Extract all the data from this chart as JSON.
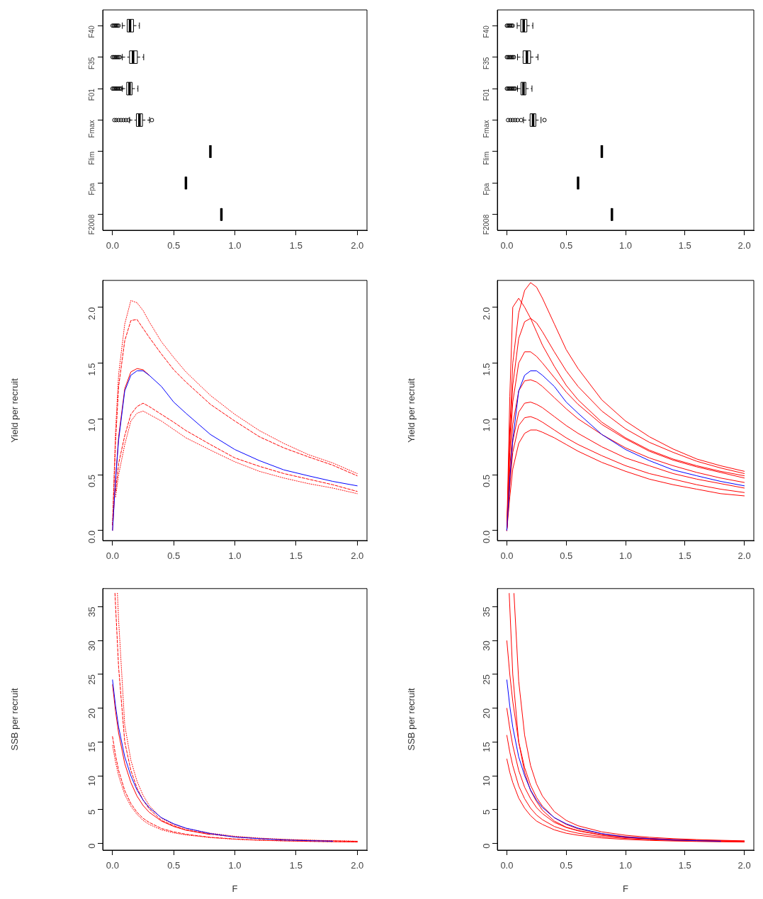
{
  "chart_data": [
    {
      "type": "box",
      "orientation": "horizontal",
      "categories": [
        "F40",
        "F35",
        "F01",
        "Fmax",
        "Flim",
        "Fpa",
        "F2008"
      ],
      "boxes": [
        {
          "low": 0.08,
          "q1": 0.12,
          "median": 0.143,
          "q3": 0.172,
          "high": 0.22,
          "outliers": [
            0.0,
            0.01,
            0.02,
            0.03,
            0.04,
            0.05
          ]
        },
        {
          "low": 0.08,
          "q1": 0.139,
          "median": 0.168,
          "q3": 0.203,
          "high": 0.255,
          "outliers": [
            0.0,
            0.01,
            0.02,
            0.03,
            0.04,
            0.05,
            0.06
          ]
        },
        {
          "low": 0.08,
          "q1": 0.116,
          "median": 0.139,
          "q3": 0.16,
          "high": 0.208,
          "outliers": [
            0.0,
            0.01,
            0.02,
            0.03,
            0.04,
            0.05,
            0.06,
            0.07
          ]
        },
        {
          "low": 0.139,
          "q1": 0.195,
          "median": 0.22,
          "q3": 0.245,
          "high": 0.303,
          "outliers": [
            0.015,
            0.03,
            0.05,
            0.07,
            0.09,
            0.11,
            0.13,
            0.322
          ]
        },
        {
          "low": 0.8,
          "q1": 0.8,
          "median": 0.8,
          "q3": 0.8,
          "high": 0.8
        },
        {
          "low": 0.6,
          "q1": 0.6,
          "median": 0.6,
          "q3": 0.6,
          "high": 0.6
        },
        {
          "low": 0.89,
          "q1": 0.89,
          "median": 0.89,
          "q3": 0.89,
          "high": 0.89
        }
      ],
      "xlim": [
        -0.08,
        2.08
      ],
      "xticks": [
        {
          "value": 0,
          "label": "0.0"
        },
        {
          "value": 0.5,
          "label": "0.5"
        },
        {
          "value": 1,
          "label": "1.0"
        },
        {
          "value": 1.5,
          "label": "1.5"
        },
        {
          "value": 2,
          "label": "2.0"
        }
      ],
      "grid": false,
      "legend": false
    },
    {
      "type": "box",
      "orientation": "horizontal",
      "categories": [
        "F40",
        "F35",
        "F01",
        "Fmax",
        "Flim",
        "Fpa",
        "F2008"
      ],
      "boxes": [
        {
          "low": 0.087,
          "q1": 0.117,
          "median": 0.142,
          "q3": 0.169,
          "high": 0.219,
          "outliers": [
            0.0,
            0.01,
            0.02,
            0.03,
            0.04,
            0.05
          ]
        },
        {
          "low": 0.09,
          "q1": 0.137,
          "median": 0.169,
          "q3": 0.2,
          "high": 0.262,
          "outliers": [
            0.0,
            0.01,
            0.02,
            0.03,
            0.04,
            0.05,
            0.06
          ]
        },
        {
          "low": 0.09,
          "q1": 0.119,
          "median": 0.14,
          "q3": 0.16,
          "high": 0.212,
          "outliers": [
            0.0,
            0.01,
            0.02,
            0.03,
            0.04,
            0.05,
            0.06,
            0.07
          ]
        },
        {
          "low": 0.14,
          "q1": 0.196,
          "median": 0.221,
          "q3": 0.244,
          "high": 0.288,
          "outliers": [
            0.01,
            0.03,
            0.05,
            0.07,
            0.09,
            0.12,
            0.317
          ]
        },
        {
          "low": 0.8,
          "q1": 0.8,
          "median": 0.8,
          "q3": 0.8,
          "high": 0.8
        },
        {
          "low": 0.6,
          "q1": 0.6,
          "median": 0.6,
          "q3": 0.6,
          "high": 0.6
        },
        {
          "low": 0.885,
          "q1": 0.885,
          "median": 0.885,
          "q3": 0.885,
          "high": 0.885
        }
      ],
      "xlim": [
        -0.08,
        2.08
      ],
      "xticks": [
        {
          "value": 0,
          "label": "0.0"
        },
        {
          "value": 0.5,
          "label": "0.5"
        },
        {
          "value": 1,
          "label": "1.0"
        },
        {
          "value": 1.5,
          "label": "1.5"
        },
        {
          "value": 2,
          "label": "2.0"
        }
      ],
      "grid": false,
      "legend": false
    },
    {
      "type": "line",
      "ylabel": "Yield per recruit",
      "marker": "none",
      "grid": false,
      "legend": false,
      "x": [
        0,
        0.025,
        0.05,
        0.1,
        0.15,
        0.2,
        0.25,
        0.3,
        0.4,
        0.5,
        0.6,
        0.8,
        1.0,
        1.2,
        1.4,
        1.6,
        1.8,
        2.0
      ],
      "series": [
        {
          "color": "#ff0000",
          "line_style": "dotted",
          "values": [
            0.05,
            0.9,
            1.4,
            1.85,
            2.06,
            2.04,
            1.97,
            1.87,
            1.69,
            1.55,
            1.42,
            1.21,
            1.04,
            0.895,
            0.78,
            0.68,
            0.605,
            0.51
          ]
        },
        {
          "color": "#ff0000",
          "line_style": "dashed",
          "values": [
            0.05,
            0.8,
            1.29,
            1.7,
            1.88,
            1.89,
            1.81,
            1.73,
            1.58,
            1.44,
            1.33,
            1.13,
            0.98,
            0.84,
            0.74,
            0.66,
            0.585,
            0.49
          ]
        },
        {
          "color": "#ff0000",
          "line_style": "dashed",
          "values": [
            null,
            0.35,
            0.6,
            0.85,
            1.04,
            1.11,
            1.14,
            1.11,
            1.04,
            0.97,
            0.895,
            0.77,
            0.65,
            0.575,
            0.51,
            0.46,
            0.41,
            0.35
          ]
        },
        {
          "color": "#ff0000",
          "line_style": "dotted",
          "values": [
            null,
            0.3,
            0.5,
            0.77,
            0.98,
            1.05,
            1.07,
            1.04,
            0.98,
            0.905,
            0.83,
            0.72,
            0.615,
            0.53,
            0.47,
            0.42,
            0.38,
            0.33
          ]
        },
        {
          "color": "#ff0000",
          "line_style": "solid",
          "values": [
            0,
            0.46,
            0.84,
            1.27,
            1.42,
            1.45,
            1.44,
            1.39,
            null,
            null,
            null,
            null,
            null,
            null,
            null,
            null,
            null,
            null
          ]
        },
        {
          "color": "#0000ff",
          "line_style": "solid",
          "values": [
            0,
            0.46,
            0.81,
            1.25,
            1.39,
            1.43,
            1.43,
            1.39,
            1.29,
            1.15,
            1.05,
            0.86,
            0.725,
            0.626,
            0.543,
            0.49,
            0.44,
            0.4
          ]
        }
      ],
      "xlim": [
        -0.08,
        2.08
      ],
      "xticks": [
        {
          "value": 0,
          "label": "0.0"
        },
        {
          "value": 0.5,
          "label": "0.5"
        },
        {
          "value": 1,
          "label": "1.0"
        },
        {
          "value": 1.5,
          "label": "1.5"
        },
        {
          "value": 2,
          "label": "2.0"
        }
      ],
      "ylim": [
        -0.09,
        2.24
      ],
      "yticks": [
        {
          "value": 0,
          "label": "0.0"
        },
        {
          "value": 0.5,
          "label": "0.5"
        },
        {
          "value": 1,
          "label": "1.0"
        },
        {
          "value": 1.5,
          "label": "1.5"
        },
        {
          "value": 2,
          "label": "2.0"
        }
      ]
    },
    {
      "type": "line",
      "ylabel": "Yield per recruit",
      "marker": "none",
      "grid": false,
      "legend": false,
      "x": [
        0,
        0.025,
        0.05,
        0.1,
        0.15,
        0.2,
        0.25,
        0.3,
        0.4,
        0.5,
        0.6,
        0.8,
        1.0,
        1.2,
        1.4,
        1.6,
        1.8,
        2.0
      ],
      "series": [
        {
          "color": "#ff0000",
          "line_style": "solid",
          "values": [
            0,
            0.9,
            1.5,
            1.95,
            2.15,
            2.22,
            2.18,
            2.08,
            1.85,
            1.62,
            1.45,
            1.17,
            0.98,
            0.84,
            0.73,
            0.64,
            0.58,
            0.53
          ]
        },
        {
          "color": "#ff0000",
          "line_style": "solid",
          "values": [
            0,
            1.2,
            2.0,
            2.08,
            2.0,
            1.9,
            1.78,
            1.66,
            1.47,
            1.3,
            1.17,
            0.97,
            0.83,
            0.72,
            0.64,
            0.58,
            0.53,
            0.49
          ]
        },
        {
          "color": "#ff0000",
          "line_style": "solid",
          "values": [
            0,
            0.8,
            1.3,
            1.72,
            1.87,
            1.9,
            1.86,
            1.78,
            1.6,
            1.43,
            1.29,
            1.07,
            0.91,
            0.79,
            0.7,
            0.62,
            0.56,
            0.51
          ]
        },
        {
          "color": "#ff0000",
          "line_style": "solid",
          "values": [
            0,
            0.7,
            1.15,
            1.5,
            1.6,
            1.6,
            1.56,
            1.5,
            1.37,
            1.24,
            1.13,
            0.95,
            0.82,
            0.71,
            0.63,
            0.57,
            0.52,
            0.47
          ]
        },
        {
          "color": "#ff0000",
          "line_style": "solid",
          "values": [
            0,
            0.55,
            0.95,
            1.25,
            1.34,
            1.35,
            1.33,
            1.29,
            1.19,
            1.09,
            1.0,
            0.86,
            0.74,
            0.65,
            0.58,
            0.52,
            0.47,
            0.43
          ]
        },
        {
          "color": "#ff0000",
          "line_style": "solid",
          "values": [
            0,
            0.45,
            0.8,
            1.06,
            1.14,
            1.15,
            1.13,
            1.1,
            1.02,
            0.94,
            0.87,
            0.75,
            0.65,
            0.58,
            0.51,
            0.46,
            0.42,
            0.38
          ]
        },
        {
          "color": "#ff0000",
          "line_style": "solid",
          "values": [
            0,
            0.4,
            0.7,
            0.94,
            1.01,
            1.02,
            1.0,
            0.97,
            0.9,
            0.83,
            0.77,
            0.67,
            0.58,
            0.51,
            0.46,
            0.41,
            0.37,
            0.34
          ]
        },
        {
          "color": "#ff0000",
          "line_style": "solid",
          "values": [
            0,
            0.3,
            0.55,
            0.78,
            0.87,
            0.9,
            0.9,
            0.88,
            0.83,
            0.77,
            0.71,
            0.61,
            0.53,
            0.46,
            0.41,
            0.37,
            0.33,
            0.31
          ]
        },
        {
          "color": "#0000ff",
          "line_style": "solid",
          "values": [
            0,
            0.46,
            0.81,
            1.25,
            1.39,
            1.43,
            1.43,
            1.39,
            1.29,
            1.15,
            1.05,
            0.86,
            0.725,
            0.626,
            0.543,
            0.49,
            0.44,
            0.4
          ]
        }
      ],
      "xlim": [
        -0.08,
        2.08
      ],
      "xticks": [
        {
          "value": 0,
          "label": "0.0"
        },
        {
          "value": 0.5,
          "label": "0.5"
        },
        {
          "value": 1,
          "label": "1.0"
        },
        {
          "value": 1.5,
          "label": "1.5"
        },
        {
          "value": 2,
          "label": "2.0"
        }
      ],
      "ylim": [
        -0.09,
        2.24
      ],
      "yticks": [
        {
          "value": 0,
          "label": "0.0"
        },
        {
          "value": 0.5,
          "label": "0.5"
        },
        {
          "value": 1,
          "label": "1.0"
        },
        {
          "value": 1.5,
          "label": "1.5"
        },
        {
          "value": 2,
          "label": "2.0"
        }
      ]
    },
    {
      "type": "line",
      "xlabel": "F",
      "ylabel": "SSB per recruit",
      "marker": "none",
      "grid": false,
      "legend": false,
      "x": [
        0,
        0.025,
        0.05,
        0.1,
        0.15,
        0.2,
        0.25,
        0.3,
        0.4,
        0.5,
        0.6,
        0.8,
        1.0,
        1.2,
        1.4,
        1.6,
        1.8,
        2.0
      ],
      "series": [
        {
          "color": "#ff0000",
          "line_style": "dotted",
          "x": [
            0.04,
            0.05,
            0.1,
            0.15,
            0.2,
            0.25,
            0.3,
            0.4,
            0.5,
            0.6,
            0.8,
            1.0,
            1.2,
            1.4,
            1.6,
            1.8,
            2.0
          ],
          "values": [
            37,
            33,
            17.5,
            12.3,
            9.2,
            7.1,
            5.6,
            3.7,
            2.8,
            2.2,
            1.5,
            1.05,
            0.78,
            0.6,
            0.48,
            0.4,
            0.32
          ]
        },
        {
          "color": "#ff0000",
          "line_style": "dashed",
          "x": [
            0.02,
            0.05,
            0.1,
            0.15,
            0.2,
            0.25,
            0.3,
            0.4,
            0.5,
            0.6,
            0.8,
            1.0,
            1.2,
            1.4,
            1.6,
            1.8,
            2.0
          ],
          "values": [
            37,
            26,
            15,
            10.8,
            8.2,
            6.4,
            5.1,
            3.4,
            2.6,
            2.0,
            1.35,
            0.95,
            0.7,
            0.55,
            0.45,
            0.37,
            0.3
          ]
        },
        {
          "color": "#ff0000",
          "line_style": "dashed",
          "values": [
            15.8,
            13,
            10.8,
            7.8,
            5.9,
            4.6,
            3.7,
            3.1,
            2.2,
            1.7,
            1.35,
            0.9,
            0.65,
            0.48,
            0.38,
            0.3,
            0.25,
            0.2
          ]
        },
        {
          "color": "#ff0000",
          "line_style": "dotted",
          "values": [
            14.5,
            12,
            10,
            7.2,
            5.5,
            4.3,
            3.4,
            2.8,
            2.0,
            1.55,
            1.25,
            0.85,
            0.6,
            0.45,
            0.36,
            0.29,
            0.24,
            0.19
          ]
        },
        {
          "color": "#ff0000",
          "line_style": "solid",
          "values": [
            23.5,
            19.5,
            16.3,
            11.8,
            9.0,
            7.0,
            5.6,
            4.6,
            3.3,
            2.5,
            1.95,
            1.3,
            null,
            null,
            null,
            null,
            null,
            null
          ]
        },
        {
          "color": "#0000ff",
          "line_style": "solid",
          "values": [
            24.2,
            20.3,
            17.2,
            12.8,
            10.0,
            7.9,
            6.4,
            5.3,
            3.8,
            2.9,
            2.25,
            1.45,
            0.93,
            0.7,
            0.5,
            0.4,
            0.32,
            null
          ]
        }
      ],
      "xlim": [
        -0.08,
        2.08
      ],
      "xticks": [
        {
          "value": 0,
          "label": "0.0"
        },
        {
          "value": 0.5,
          "label": "0.5"
        },
        {
          "value": 1,
          "label": "1.0"
        },
        {
          "value": 1.5,
          "label": "1.5"
        },
        {
          "value": 2,
          "label": "2.0"
        }
      ],
      "ylim": [
        -1.0,
        37.7
      ],
      "yticks": [
        0,
        5,
        10,
        15,
        20,
        25,
        30,
        35
      ]
    },
    {
      "type": "line",
      "xlabel": "F",
      "ylabel": "SSB per recruit",
      "marker": "none",
      "grid": false,
      "legend": false,
      "x": [
        0,
        0.025,
        0.05,
        0.1,
        0.15,
        0.2,
        0.25,
        0.3,
        0.4,
        0.5,
        0.6,
        0.8,
        1.0,
        1.2,
        1.4,
        1.6,
        1.8,
        2.0
      ],
      "series": [
        {
          "color": "#ff0000",
          "line_style": "solid",
          "x": [
            0.06,
            0.1,
            0.15,
            0.2,
            0.25,
            0.3,
            0.4,
            0.5,
            0.6,
            0.8,
            1.0,
            1.2,
            1.4,
            1.6,
            1.8,
            2.0
          ],
          "values": [
            37,
            24,
            16,
            11.5,
            8.8,
            7.0,
            4.7,
            3.4,
            2.6,
            1.7,
            1.2,
            0.9,
            0.7,
            0.56,
            0.46,
            0.38
          ]
        },
        {
          "color": "#ff0000",
          "line_style": "solid",
          "x": [
            0.02,
            0.05,
            0.1,
            0.15,
            0.2,
            0.25,
            0.3,
            0.4,
            0.5,
            0.6,
            0.8,
            1.0,
            1.2,
            1.4,
            1.6,
            1.8,
            2.0
          ],
          "values": [
            37,
            25,
            15,
            10.5,
            7.8,
            6.2,
            4.9,
            3.3,
            2.4,
            1.9,
            1.25,
            0.9,
            0.68,
            0.53,
            0.43,
            0.36,
            0.3
          ]
        },
        {
          "color": "#ff0000",
          "line_style": "solid",
          "values": [
            30,
            25,
            21,
            15,
            11.2,
            8.6,
            6.8,
            5.5,
            3.8,
            2.8,
            2.15,
            1.4,
            1.0,
            0.75,
            0.58,
            0.47,
            0.39,
            0.32
          ]
        },
        {
          "color": "#ff0000",
          "line_style": "solid",
          "values": [
            20,
            17,
            14.5,
            10.8,
            8.3,
            6.6,
            5.3,
            4.4,
            3.1,
            2.35,
            1.85,
            1.2,
            0.85,
            0.64,
            0.5,
            0.41,
            0.34,
            0.28
          ]
        },
        {
          "color": "#ff0000",
          "line_style": "solid",
          "values": [
            16,
            13.5,
            11.5,
            8.5,
            6.6,
            5.2,
            4.2,
            3.5,
            2.5,
            1.9,
            1.5,
            1.0,
            0.72,
            0.55,
            0.43,
            0.35,
            0.29,
            null
          ]
        },
        {
          "color": "#ff0000",
          "line_style": "solid",
          "values": [
            12.5,
            10.5,
            9,
            6.7,
            5.2,
            4.1,
            3.3,
            2.8,
            2.0,
            1.5,
            1.2,
            0.8,
            0.58,
            0.44,
            0.35,
            0.28,
            0.23,
            0.19
          ]
        },
        {
          "color": "#0000ff",
          "line_style": "solid",
          "values": [
            24.2,
            20.3,
            17.2,
            12.8,
            10.0,
            7.9,
            6.4,
            5.3,
            3.8,
            2.9,
            2.25,
            1.45,
            0.93,
            0.7,
            0.5,
            0.4,
            0.32,
            null
          ]
        }
      ],
      "xlim": [
        -0.08,
        2.08
      ],
      "xticks": [
        {
          "value": 0,
          "label": "0.0"
        },
        {
          "value": 0.5,
          "label": "0.5"
        },
        {
          "value": 1,
          "label": "1.0"
        },
        {
          "value": 1.5,
          "label": "1.5"
        },
        {
          "value": 2,
          "label": "2.0"
        }
      ],
      "ylim": [
        -1.0,
        37.7
      ],
      "yticks": [
        0,
        5,
        10,
        15,
        20,
        25,
        30,
        35
      ]
    }
  ]
}
